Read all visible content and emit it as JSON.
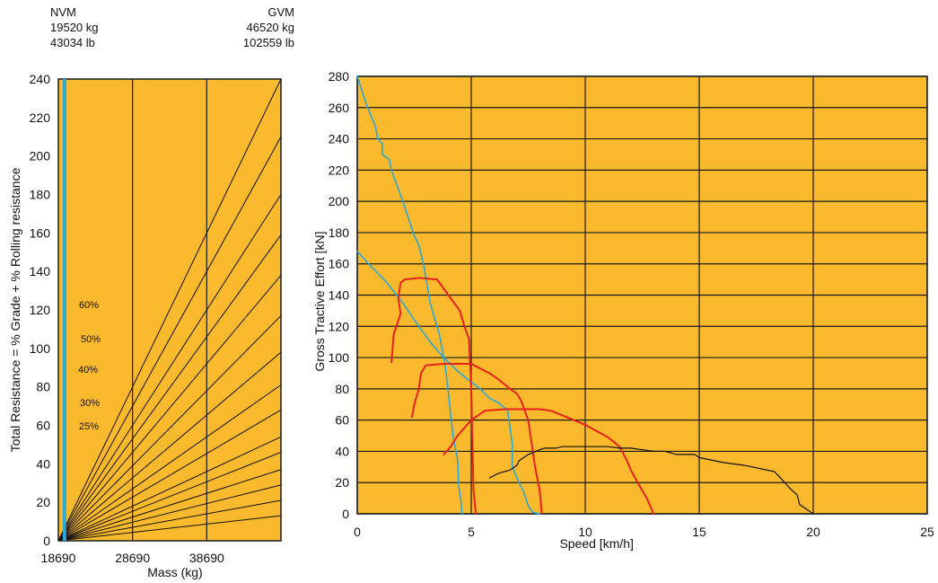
{
  "header": {
    "nvm": {
      "label": "NVM",
      "kg": "19520 kg",
      "lb": "43034 lb"
    },
    "gvm": {
      "label": "GVM",
      "kg": "46520 kg",
      "lb": "102559 lb"
    }
  },
  "colors": {
    "background": "#FBB92E",
    "grid": "#1a1a1a",
    "gear_curve": "#111111",
    "converter_curve": "#E5231B",
    "limit_curve": "#2AA8D8",
    "nvm_marker": "#2AA8D8"
  },
  "chart_data": [
    {
      "type": "line",
      "title": "",
      "xlabel": "Mass (kg)",
      "ylabel": "Total Resistance = % Grade + % Rolling resistance",
      "xlim": [
        18690,
        48690
      ],
      "ylim": [
        0,
        240
      ],
      "xticks": [
        18690,
        28690,
        38690
      ],
      "xtick_labels": [
        "18690",
        "28690",
        "38690"
      ],
      "yticks": [
        0,
        20,
        40,
        60,
        80,
        100,
        120,
        140,
        160,
        180,
        200,
        220,
        240
      ],
      "grid": true,
      "nvm_x": 19520,
      "series_labels": [
        "60%",
        "50%",
        "40%",
        "30%",
        "25%"
      ],
      "series": [
        {
          "x": [
            18690,
            48690
          ],
          "y": [
            0,
            240
          ]
        },
        {
          "x": [
            18690,
            48690
          ],
          "y": [
            0,
            210
          ]
        },
        {
          "x": [
            18690,
            48690
          ],
          "y": [
            0,
            180
          ]
        },
        {
          "x": [
            18690,
            48690
          ],
          "y": [
            0,
            159
          ]
        },
        {
          "x": [
            18690,
            48690
          ],
          "y": [
            0,
            138
          ]
        },
        {
          "x": [
            18690,
            48690
          ],
          "y": [
            0,
            117
          ]
        },
        {
          "x": [
            18690,
            48690
          ],
          "y": [
            0,
            98
          ]
        },
        {
          "x": [
            18690,
            48690
          ],
          "y": [
            0,
            81
          ]
        },
        {
          "x": [
            18690,
            48690
          ],
          "y": [
            0,
            68
          ]
        },
        {
          "x": [
            18690,
            48690
          ],
          "y": [
            0,
            54
          ]
        },
        {
          "x": [
            18690,
            48690
          ],
          "y": [
            0,
            46
          ]
        },
        {
          "x": [
            18690,
            48690
          ],
          "y": [
            0,
            37
          ]
        },
        {
          "x": [
            18690,
            48690
          ],
          "y": [
            0,
            29
          ]
        },
        {
          "x": [
            18690,
            48690
          ],
          "y": [
            0,
            21
          ]
        },
        {
          "x": [
            18690,
            48690
          ],
          "y": [
            0,
            13
          ]
        }
      ]
    },
    {
      "type": "line",
      "title": "",
      "xlabel": "Speed [km/h]",
      "ylabel": "Gross Tractive Effort [kN]",
      "xlim": [
        0,
        25
      ],
      "ylim": [
        0,
        280
      ],
      "xticks": [
        0,
        5,
        10,
        15,
        20,
        25
      ],
      "yticks": [
        0,
        20,
        40,
        60,
        80,
        100,
        120,
        140,
        160,
        180,
        200,
        220,
        240,
        260,
        280
      ],
      "hgrid": [
        0,
        20,
        40,
        60,
        80,
        100,
        120,
        140,
        160,
        180,
        200,
        220,
        240,
        260,
        280
      ],
      "vgrid": [
        0,
        5,
        10,
        15,
        20,
        25
      ],
      "grid": true,
      "series": [
        {
          "group": "limit",
          "x": [
            0.0,
            0.4,
            0.8,
            0.9,
            1.1,
            1.1,
            1.4,
            1.5,
            2.0,
            2.5,
            2.7,
            2.9,
            3.2,
            3.3,
            3.6,
            3.8,
            3.9,
            4.2,
            4.4,
            4.45,
            4.55,
            4.6
          ],
          "y": [
            280,
            262,
            248,
            240,
            237,
            230,
            227,
            220,
            200,
            178,
            172,
            160,
            135,
            130,
            115,
            100,
            90,
            50,
            35,
            18,
            8,
            0
          ]
        },
        {
          "group": "limit",
          "x": [
            0.0,
            0.5,
            1.3,
            2.0,
            2.7,
            3.2,
            3.8,
            4.5,
            5.4,
            5.8,
            6.2,
            6.6,
            6.8,
            6.8,
            7.1,
            7.3,
            7.5,
            7.7,
            8.0
          ],
          "y": [
            168,
            160,
            148,
            135,
            120,
            110,
            100,
            90,
            80,
            74,
            71,
            66,
            45,
            30,
            20,
            14,
            5,
            1,
            0
          ]
        },
        {
          "group": "converter",
          "x": [
            1.5,
            1.6,
            1.9,
            1.8,
            1.9,
            2.1,
            2.7,
            3.5,
            4.0,
            4.5,
            4.7,
            4.9,
            5.0,
            5.05,
            5.1,
            5.2
          ],
          "y": [
            97,
            115,
            128,
            138,
            148,
            150,
            151,
            150,
            140,
            130,
            120,
            112,
            80,
            45,
            15,
            0
          ]
        },
        {
          "group": "converter",
          "x": [
            2.4,
            2.5,
            2.7,
            2.8,
            3.0,
            3.8,
            5.0,
            5.8,
            6.2,
            6.7,
            7.0,
            7.2,
            7.5,
            7.7,
            7.8,
            8.0,
            8.1
          ],
          "y": [
            62,
            70,
            80,
            90,
            95,
            96,
            96,
            90,
            86,
            80,
            77,
            72,
            60,
            40,
            30,
            15,
            0
          ]
        },
        {
          "group": "converter",
          "x": [
            3.8,
            4.1,
            4.4,
            5.0,
            5.6,
            6.5,
            8.0,
            8.5,
            9.0,
            10.0,
            11.0,
            11.5,
            11.8,
            12.0,
            12.3,
            12.7,
            13.0
          ],
          "y": [
            38,
            43,
            50,
            60,
            66,
            67,
            67,
            66,
            63,
            57,
            49,
            43,
            35,
            28,
            20,
            10,
            0
          ]
        },
        {
          "group": "gear",
          "x": [
            5.8,
            6.2,
            6.7,
            7.0,
            7.1,
            7.5,
            8.0,
            8.2,
            8.7,
            9.0,
            11.0,
            11.5,
            12.0,
            12.5,
            13.0,
            13.5,
            14.0,
            14.8,
            15.0,
            16.0,
            17.0,
            18.3,
            18.5,
            19.0,
            19.3,
            19.4,
            19.7,
            20.0
          ],
          "y": [
            23,
            26,
            28,
            31,
            34,
            38,
            41,
            42,
            42,
            43,
            43,
            42,
            42,
            41,
            40,
            40,
            38,
            38,
            36,
            33,
            31,
            27,
            24,
            16,
            12,
            6,
            3,
            0
          ]
        }
      ]
    }
  ]
}
